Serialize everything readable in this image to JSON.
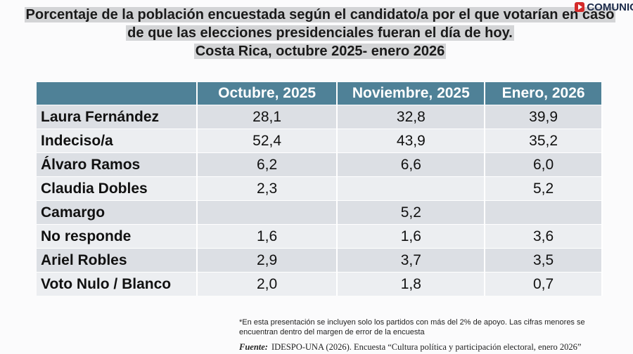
{
  "header": {
    "title": [
      "Porcentaje de la población encuestada según el candidato/a por el que votarían en caso",
      "de que las elecciones presidenciales fueran el día de hoy.",
      "Costa Rica, octubre 2025- enero 2026"
    ],
    "logo": "COMUNIC"
  },
  "table": {
    "columns": [
      "Octubre, 2025",
      "Noviembre, 2025",
      "Enero, 2026"
    ],
    "rows": [
      [
        "Laura Fernández",
        "28,1",
        "32,8",
        "39,9"
      ],
      [
        "Indeciso/a",
        "52,4",
        "43,9",
        "35,2"
      ],
      [
        "Álvaro Ramos",
        "6,2",
        "6,6",
        "6,0"
      ],
      [
        "Claudia Dobles",
        "2,3",
        null,
        "5,2"
      ],
      [
        "Camargo",
        null,
        "5,2",
        null
      ],
      [
        "No responde",
        "1,6",
        "1,6",
        "3,6"
      ],
      [
        "Ariel Robles",
        "2,9",
        "3,7",
        "3,5"
      ],
      [
        "Voto Nulo / Blanco",
        "2,0",
        "1,8",
        "0,7"
      ]
    ]
  },
  "footnote": [
    "*En esta presentación se incluyen solo los partidos con más del 2% de apoyo. Las cifras menores se",
    "encuentran dentro del margen de error de la encuesta"
  ],
  "source": {
    "label": "Fuente:",
    "text": "IDESPO-UNA (2026). Encuesta “Cultura política y participación electoral, enero 2026”"
  }
}
